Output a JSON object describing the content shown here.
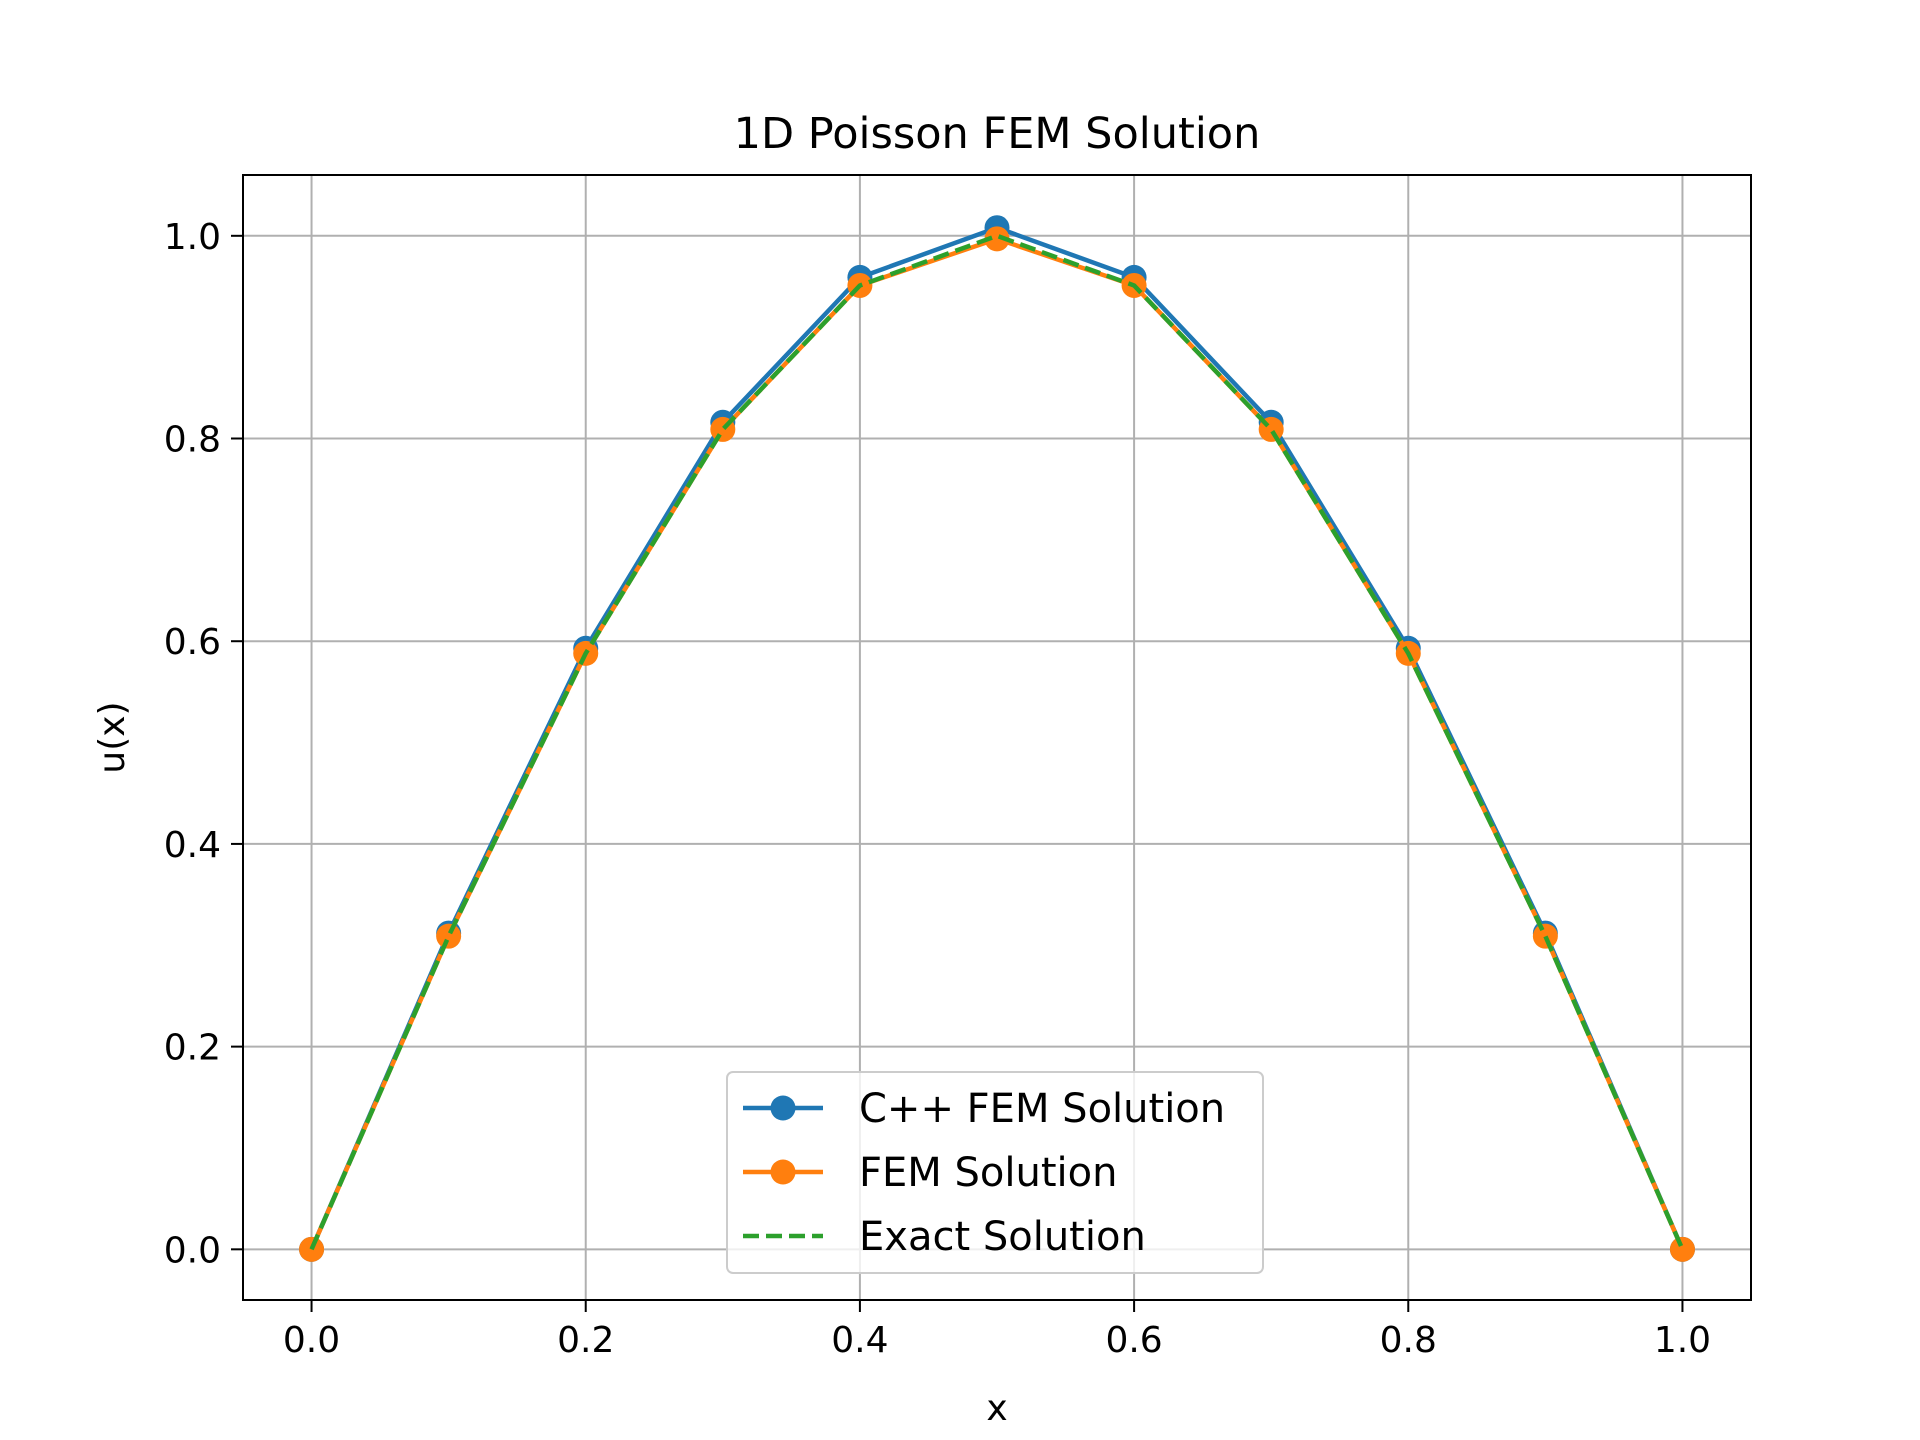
{
  "chart_data": {
    "type": "line",
    "title": "1D Poisson FEM Solution",
    "xlabel": "x",
    "ylabel": "u(x)",
    "xlim": [
      -0.05,
      1.05
    ],
    "ylim": [
      -0.05,
      1.06
    ],
    "xticks": [
      0.0,
      0.2,
      0.4,
      0.6,
      0.8,
      1.0
    ],
    "xtick_labels": [
      "0.0",
      "0.2",
      "0.4",
      "0.6",
      "0.8",
      "1.0"
    ],
    "yticks": [
      0.0,
      0.2,
      0.4,
      0.6,
      0.8,
      1.0
    ],
    "ytick_labels": [
      "0.0",
      "0.2",
      "0.4",
      "0.6",
      "0.8",
      "1.0"
    ],
    "grid": true,
    "legend_position": "lower center",
    "x": [
      0.0,
      0.1,
      0.2,
      0.3,
      0.4,
      0.5,
      0.6,
      0.7,
      0.8,
      0.9,
      1.0
    ],
    "series": [
      {
        "name": "C++ FEM Solution",
        "color": "#1f77b4",
        "style": "solid",
        "marker": "circle",
        "values": [
          0.0,
          0.312,
          0.593,
          0.816,
          0.959,
          1.008,
          0.959,
          0.816,
          0.593,
          0.312,
          0.0
        ]
      },
      {
        "name": "FEM Solution",
        "color": "#ff7f0e",
        "style": "solid",
        "marker": "circle",
        "values": [
          0.0,
          0.309,
          0.588,
          0.809,
          0.951,
          0.997,
          0.951,
          0.809,
          0.588,
          0.309,
          0.0
        ]
      },
      {
        "name": "Exact Solution",
        "color": "#2ca02c",
        "style": "dashed",
        "marker": "none",
        "values": [
          0.0,
          0.309,
          0.588,
          0.809,
          0.951,
          1.0,
          0.951,
          0.809,
          0.588,
          0.309,
          0.0
        ]
      }
    ]
  }
}
